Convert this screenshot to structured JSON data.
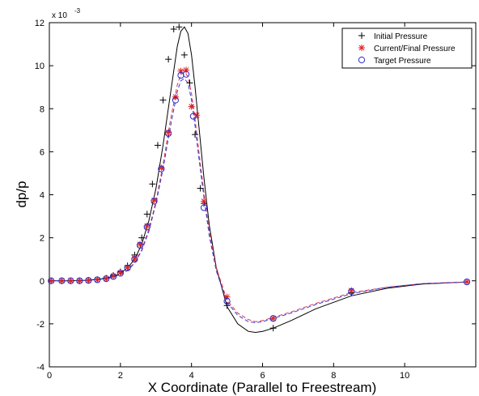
{
  "chart_data": {
    "type": "line",
    "xlabel": "X Coordinate (Parallel to Freestream)",
    "ylabel": "dp/p",
    "y_scale_label": "x 10",
    "y_scale_exponent": "-3",
    "xlim": [
      0,
      12
    ],
    "ylim": [
      -4,
      12
    ],
    "x_ticks": [
      0,
      2,
      4,
      6,
      8,
      10
    ],
    "y_ticks": [
      -4,
      -2,
      0,
      2,
      4,
      6,
      8,
      10,
      12
    ],
    "legend_position": "top-right",
    "series": [
      {
        "name": "Initial Pressure",
        "line_style": "solid",
        "color": "#000000",
        "marker": "plus",
        "marker_color": "#000000",
        "curve": {
          "x": [
            0,
            0.5,
            1.0,
            1.4,
            1.8,
            2.0,
            2.2,
            2.4,
            2.6,
            2.8,
            3.0,
            3.2,
            3.4,
            3.6,
            3.7,
            3.8,
            3.9,
            4.0,
            4.1,
            4.2,
            4.35,
            4.5,
            4.7,
            5.0,
            5.3,
            5.6,
            5.8,
            6.0,
            6.3,
            6.8,
            7.5,
            8.5,
            9.5,
            10.5,
            11.8
          ],
          "y": [
            0,
            0,
            0.02,
            0.07,
            0.2,
            0.35,
            0.6,
            1.0,
            1.7,
            2.8,
            4.3,
            6.3,
            8.6,
            10.9,
            11.6,
            11.8,
            11.5,
            10.5,
            9.0,
            7.3,
            4.8,
            2.6,
            0.6,
            -1.2,
            -2.0,
            -2.35,
            -2.4,
            -2.35,
            -2.2,
            -1.85,
            -1.3,
            -0.7,
            -0.35,
            -0.15,
            -0.05
          ]
        },
        "markers": {
          "x": [
            0.05,
            0.35,
            0.6,
            0.85,
            1.1,
            1.35,
            1.6,
            1.8,
            2.0,
            2.2,
            2.4,
            2.6,
            2.75,
            2.9,
            3.05,
            3.2,
            3.35,
            3.5,
            3.65,
            3.8,
            3.95,
            4.1,
            4.25,
            4.35,
            5.0,
            6.3,
            8.5,
            11.75
          ],
          "y": [
            0,
            0,
            0,
            0,
            0.02,
            0.05,
            0.12,
            0.25,
            0.42,
            0.7,
            1.2,
            2.0,
            3.1,
            4.5,
            6.3,
            8.4,
            10.3,
            11.7,
            11.8,
            10.5,
            9.2,
            6.8,
            4.3,
            3.6,
            -1.15,
            -2.2,
            -0.55,
            -0.05
          ]
        }
      },
      {
        "name": "Current/Final Pressure",
        "line_style": "dashed",
        "color": "#e0304a",
        "marker": "asterisk",
        "marker_color": "#e02020",
        "curve": {
          "x": [
            0,
            0.5,
            1.0,
            1.4,
            1.8,
            2.0,
            2.2,
            2.4,
            2.6,
            2.8,
            3.0,
            3.2,
            3.4,
            3.6,
            3.7,
            3.8,
            3.9,
            4.0,
            4.1,
            4.2,
            4.35,
            4.5,
            4.7,
            5.0,
            5.3,
            5.6,
            5.8,
            6.0,
            6.3,
            6.8,
            7.5,
            8.5,
            9.5,
            10.5,
            11.8
          ],
          "y": [
            0,
            0,
            0.02,
            0.06,
            0.18,
            0.3,
            0.5,
            0.85,
            1.45,
            2.4,
            3.7,
            5.4,
            7.4,
            9.1,
            9.6,
            9.7,
            9.5,
            8.7,
            7.5,
            6.1,
            4.1,
            2.3,
            0.6,
            -0.9,
            -1.5,
            -1.8,
            -1.9,
            -1.85,
            -1.7,
            -1.45,
            -1.05,
            -0.55,
            -0.3,
            -0.13,
            -0.05
          ]
        },
        "markers": {
          "x": [
            0.05,
            0.35,
            0.6,
            0.85,
            1.1,
            1.35,
            1.6,
            1.8,
            2.0,
            2.2,
            2.4,
            2.55,
            2.75,
            2.95,
            3.15,
            3.35,
            3.55,
            3.7,
            3.85,
            4.0,
            4.15,
            4.35,
            5.0,
            6.3,
            8.5,
            11.75
          ],
          "y": [
            0,
            0,
            0,
            0,
            0.02,
            0.05,
            0.1,
            0.22,
            0.38,
            0.62,
            1.05,
            1.7,
            2.55,
            3.75,
            5.25,
            6.9,
            8.55,
            9.75,
            9.8,
            8.1,
            7.7,
            3.7,
            -0.75,
            -1.75,
            -0.45,
            -0.05
          ]
        }
      },
      {
        "name": "Target Pressure",
        "line_style": "dashed",
        "color": "#3a3ad0",
        "marker": "circle",
        "marker_color": "#2a2ac8",
        "curve": {
          "x": [
            0,
            0.5,
            1.0,
            1.4,
            1.8,
            2.0,
            2.2,
            2.4,
            2.6,
            2.8,
            3.0,
            3.2,
            3.4,
            3.6,
            3.7,
            3.8,
            3.9,
            4.0,
            4.1,
            4.2,
            4.35,
            4.5,
            4.7,
            5.0,
            5.3,
            5.6,
            5.8,
            6.0,
            6.3,
            6.8,
            7.5,
            8.5,
            9.5,
            10.5,
            11.8
          ],
          "y": [
            0,
            0,
            0.02,
            0.06,
            0.17,
            0.29,
            0.48,
            0.82,
            1.4,
            2.3,
            3.6,
            5.2,
            7.1,
            8.8,
            9.3,
            9.4,
            9.2,
            8.4,
            7.2,
            5.8,
            3.9,
            2.1,
            0.45,
            -1.0,
            -1.6,
            -1.9,
            -1.95,
            -1.9,
            -1.75,
            -1.5,
            -1.1,
            -0.6,
            -0.3,
            -0.13,
            -0.05
          ]
        },
        "markers": {
          "x": [
            0.05,
            0.35,
            0.6,
            0.85,
            1.1,
            1.35,
            1.6,
            1.8,
            2.0,
            2.2,
            2.4,
            2.55,
            2.75,
            2.95,
            3.15,
            3.35,
            3.55,
            3.7,
            3.85,
            4.05,
            4.35,
            5.0,
            6.3,
            8.5,
            11.75
          ],
          "y": [
            0,
            0,
            0,
            0,
            0.02,
            0.05,
            0.1,
            0.2,
            0.35,
            0.6,
            1.0,
            1.65,
            2.5,
            3.7,
            5.2,
            6.85,
            8.4,
            9.55,
            9.6,
            7.65,
            3.4,
            -0.95,
            -1.75,
            -0.5,
            -0.05
          ]
        }
      }
    ]
  }
}
